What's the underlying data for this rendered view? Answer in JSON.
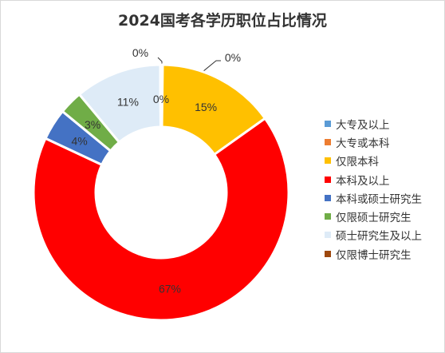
{
  "chart_data": {
    "type": "pie",
    "variant": "doughnut",
    "title": "2024国考各学历职位占比情况",
    "categories": [
      "大专及以上",
      "大专或本科",
      "仅限本科",
      "本科及以上",
      "本科或硕士研究生",
      "仅限硕士研究生",
      "硕士研究生及以上",
      "仅限博士研究生"
    ],
    "values": [
      0.1,
      0.1,
      15,
      67,
      4,
      3,
      11,
      0.1
    ],
    "data_labels": [
      "0%",
      "0%",
      "15%",
      "67%",
      "4%",
      "3%",
      "11%",
      "0%"
    ],
    "colors": [
      "#5B9BD5",
      "#ED7D31",
      "#FFC000",
      "#FF0000",
      "#4472C4",
      "#70AD47",
      "#DEEBF7",
      "#9E480E"
    ],
    "legend_position": "right"
  }
}
